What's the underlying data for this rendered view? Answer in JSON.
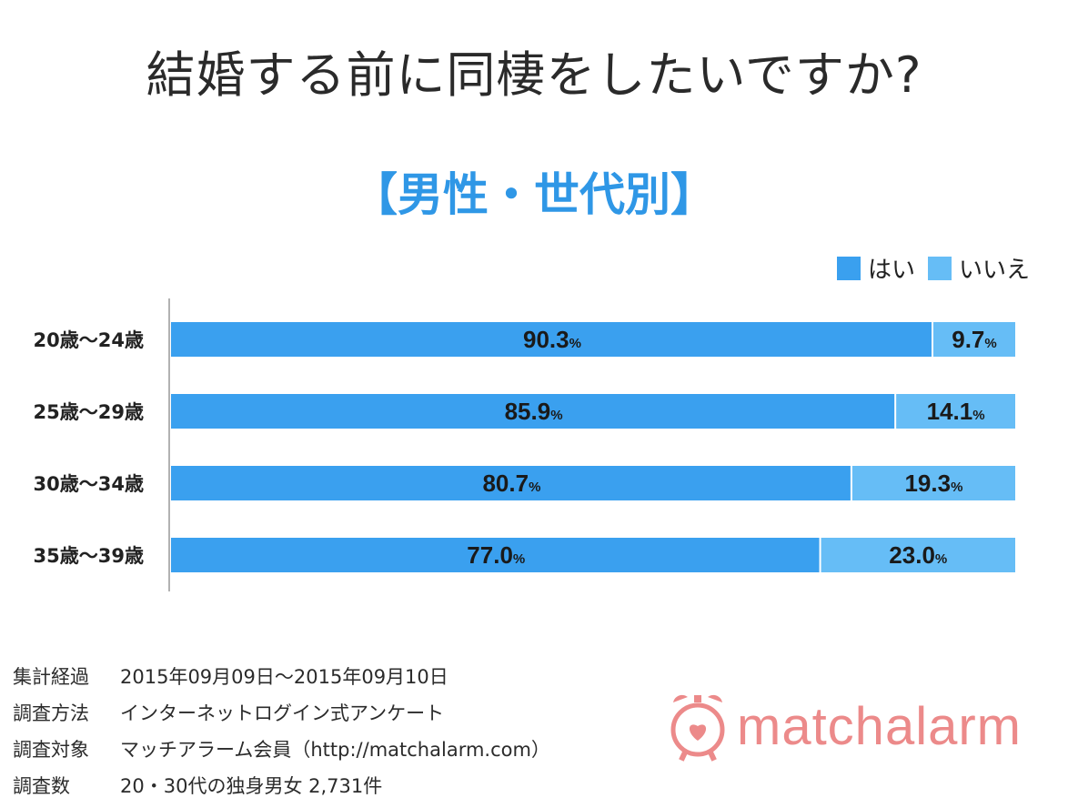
{
  "title": "結婚する前に同棲をしたいですか?",
  "subtitle": "【男性・世代別】",
  "colors": {
    "yes": "#3aa0ef",
    "no": "#66bdf6",
    "subtitle": "#2f97e6",
    "logo": "#ec8a8a"
  },
  "legend": {
    "yes": "はい",
    "no": "いいえ"
  },
  "chart_data": {
    "type": "bar",
    "orientation": "horizontal",
    "stacked": true,
    "categories": [
      "20歳〜24歳",
      "25歳〜29歳",
      "30歳〜34歳",
      "35歳〜39歳"
    ],
    "series": [
      {
        "name": "はい",
        "values": [
          90.3,
          85.9,
          80.7,
          77.0
        ]
      },
      {
        "name": "いいえ",
        "values": [
          9.7,
          14.1,
          19.3,
          23.0
        ]
      }
    ],
    "value_labels": [
      [
        "90.3",
        "9.7"
      ],
      [
        "85.9",
        "14.1"
      ],
      [
        "80.7",
        "19.3"
      ],
      [
        "77.0",
        "23.0"
      ]
    ],
    "unit": "%",
    "xlim": [
      0,
      100
    ],
    "legend_position": "top-right"
  },
  "footer": [
    {
      "label": "集計経過",
      "value": "2015年09月09日〜2015年09月10日"
    },
    {
      "label": "調査方法",
      "value": "インターネットログイン式アンケート"
    },
    {
      "label": "調査対象",
      "value": "マッチアラーム会員（http://matchalarm.com）"
    },
    {
      "label": "調査数",
      "value": "20・30代の独身男女 2,731件"
    }
  ],
  "logo": {
    "text": "matchalarm",
    "icon": "alarm-clock-heart-icon"
  }
}
